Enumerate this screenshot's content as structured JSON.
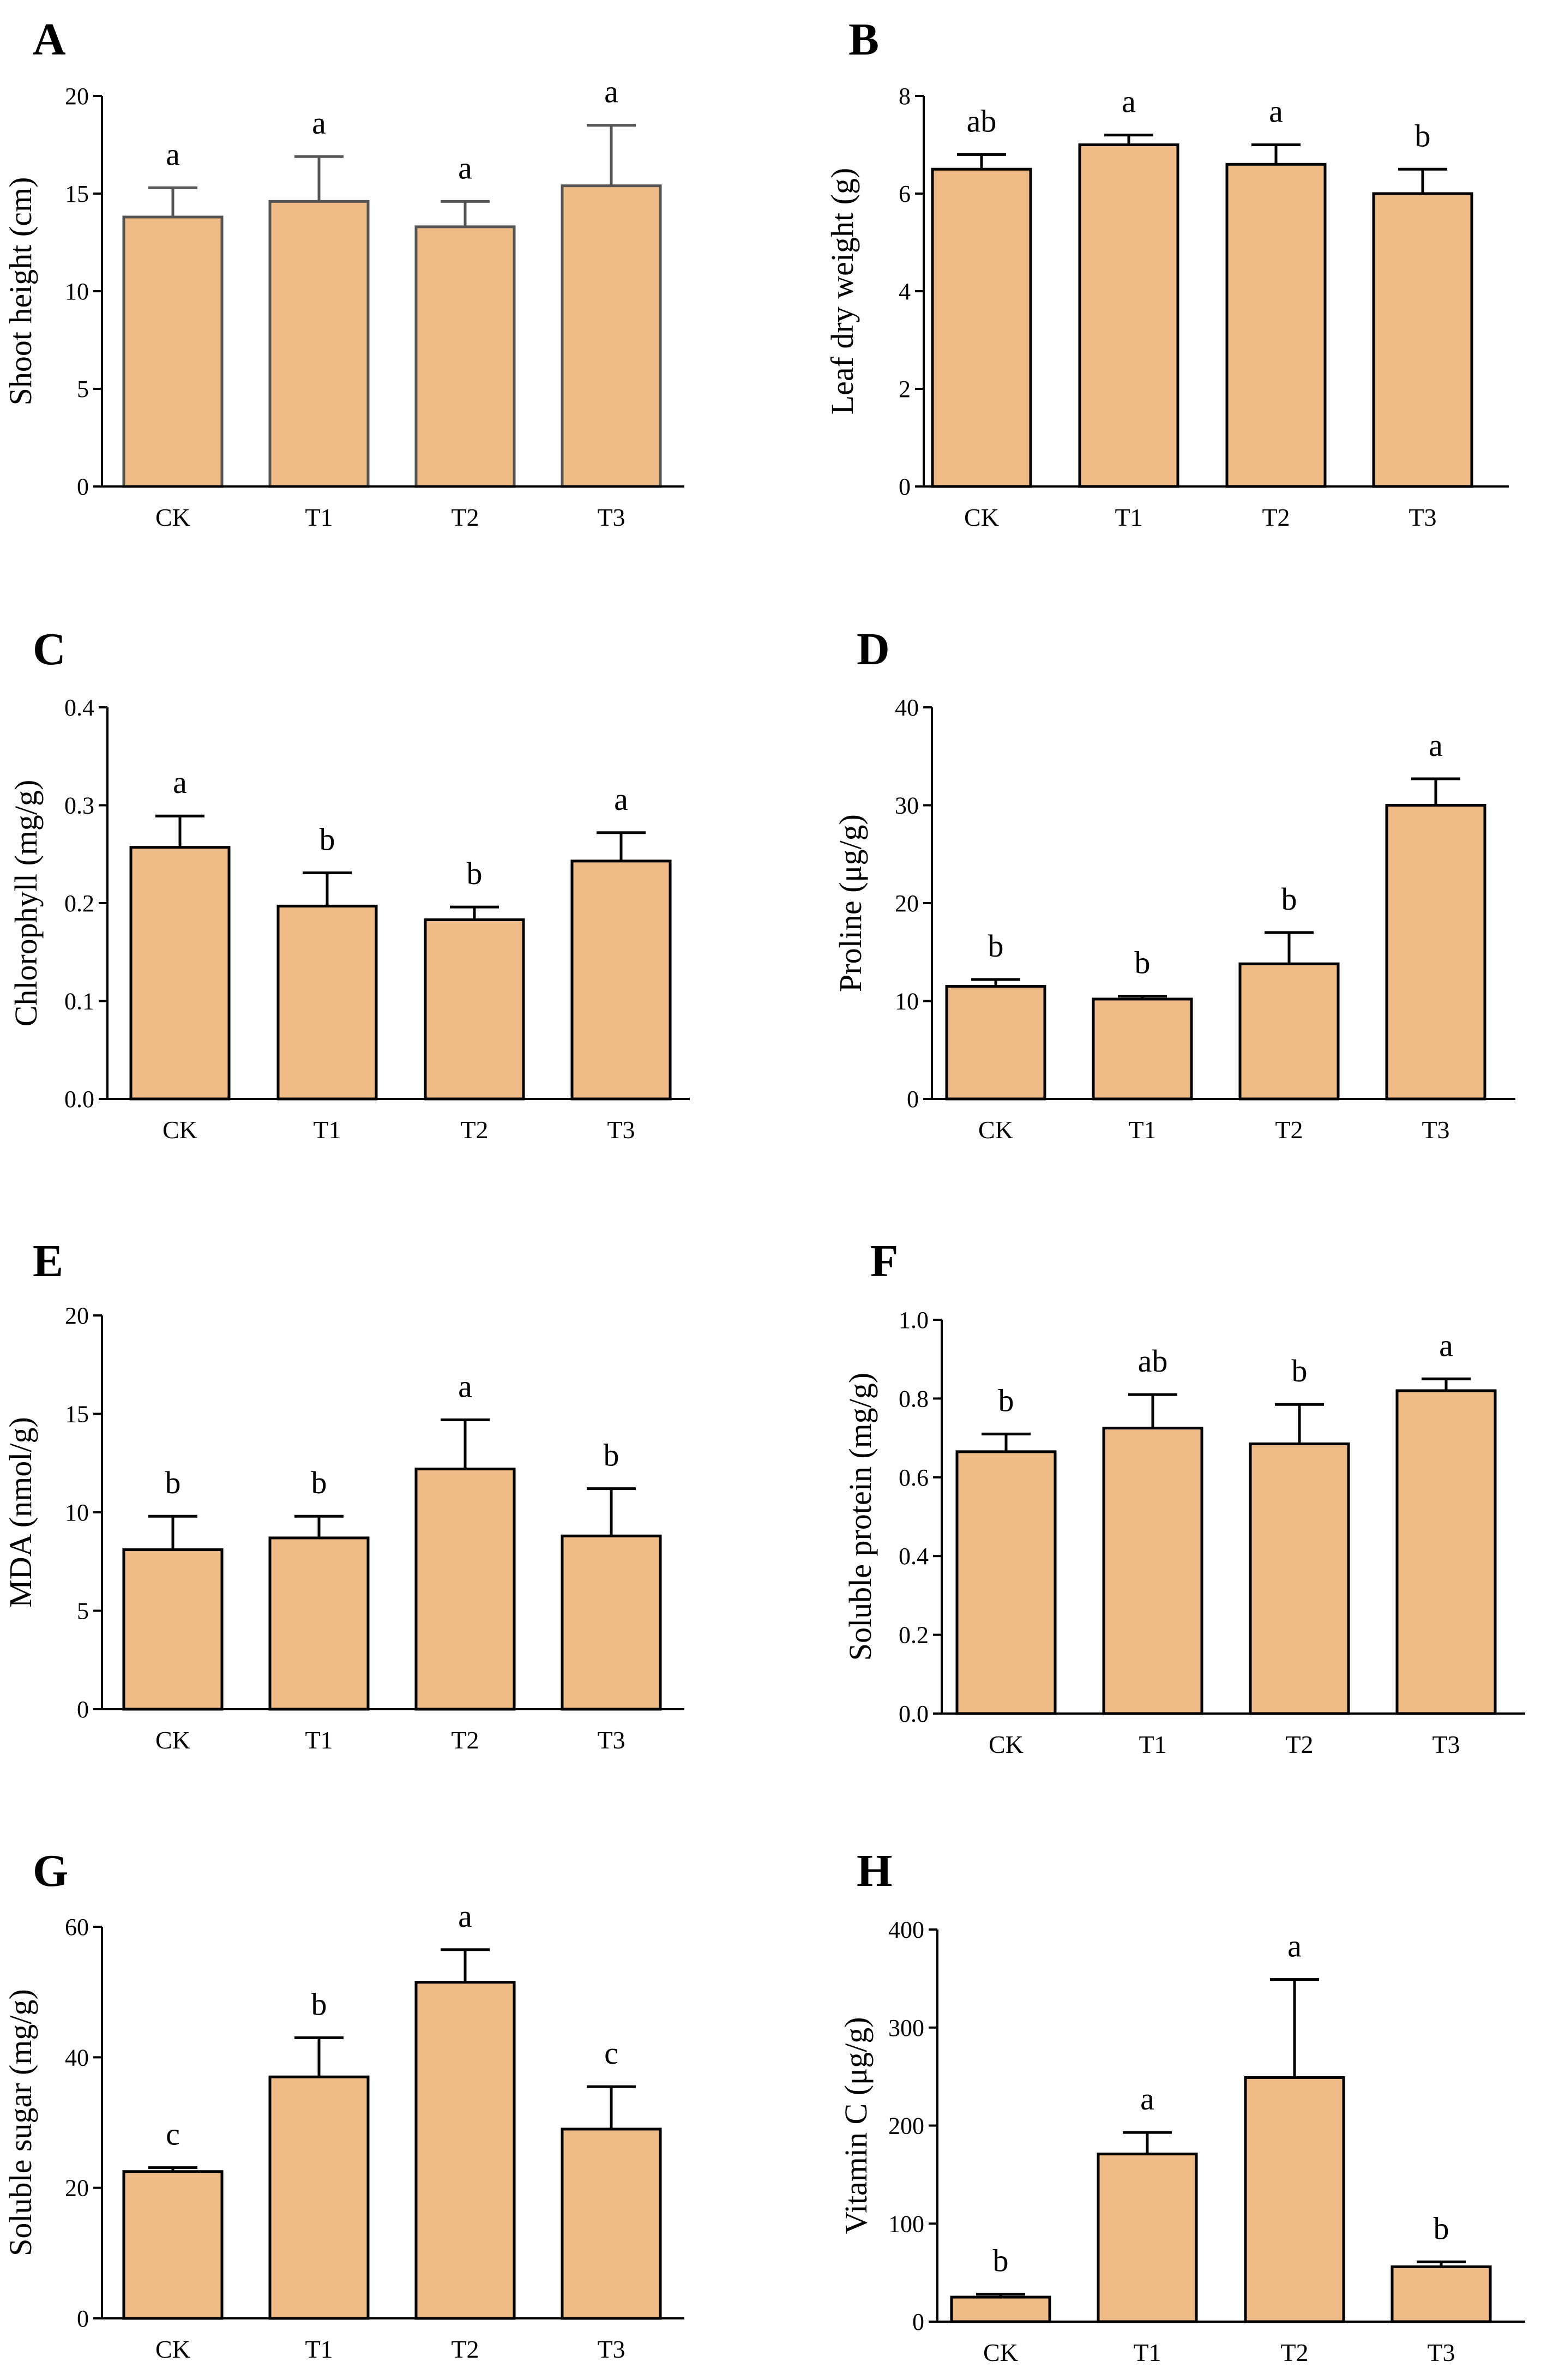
{
  "figure": {
    "bar_color": "#EFBC87",
    "bar_edge_color": "#000000",
    "bar_edge_color_A": "#555555"
  },
  "chart_data": [
    {
      "panel": "A",
      "type": "bar",
      "title": "",
      "xlabel": "",
      "ylabel": "Shoot height (cm)",
      "categories": [
        "CK",
        "T1",
        "T2",
        "T3"
      ],
      "values": [
        13.8,
        14.6,
        13.3,
        15.4
      ],
      "errors": [
        1.5,
        2.3,
        1.3,
        3.1
      ],
      "significance": [
        "a",
        "a",
        "a",
        "a"
      ],
      "ylim": [
        0,
        20
      ],
      "yticks": [
        "0",
        "5",
        "10",
        "15",
        "20"
      ]
    },
    {
      "panel": "B",
      "type": "bar",
      "title": "",
      "xlabel": "",
      "ylabel": "Leaf dry weight (g)",
      "categories": [
        "CK",
        "T1",
        "T2",
        "T3"
      ],
      "values": [
        6.5,
        7.0,
        6.6,
        6.0
      ],
      "errors": [
        0.3,
        0.2,
        0.4,
        0.5
      ],
      "significance": [
        "ab",
        "a",
        "a",
        "b"
      ],
      "ylim": [
        0,
        8
      ],
      "yticks": [
        "0",
        "2",
        "4",
        "6",
        "8"
      ]
    },
    {
      "panel": "C",
      "type": "bar",
      "title": "",
      "xlabel": "",
      "ylabel": "Chlorophyll (mg/g)",
      "categories": [
        "CK",
        "T1",
        "T2",
        "T3"
      ],
      "values": [
        0.257,
        0.197,
        0.183,
        0.243
      ],
      "errors": [
        0.032,
        0.034,
        0.013,
        0.029
      ],
      "significance": [
        "a",
        "b",
        "b",
        "a"
      ],
      "ylim": [
        0,
        0.4
      ],
      "yticks": [
        "0.0",
        "0.1",
        "0.2",
        "0.3",
        "0.4"
      ]
    },
    {
      "panel": "D",
      "type": "bar",
      "title": "",
      "xlabel": "",
      "ylabel": "Proline (μg/g)",
      "categories": [
        "CK",
        "T1",
        "T2",
        "T3"
      ],
      "values": [
        11.5,
        10.2,
        13.8,
        30.0
      ],
      "errors": [
        0.7,
        0.3,
        3.2,
        2.7
      ],
      "significance": [
        "b",
        "b",
        "b",
        "a"
      ],
      "ylim": [
        0,
        40
      ],
      "yticks": [
        "0",
        "10",
        "20",
        "30",
        "40"
      ]
    },
    {
      "panel": "E",
      "type": "bar",
      "title": "",
      "xlabel": "",
      "ylabel": "MDA (nmol/g)",
      "categories": [
        "CK",
        "T1",
        "T2",
        "T3"
      ],
      "values": [
        8.1,
        8.7,
        12.2,
        8.8
      ],
      "errors": [
        1.7,
        1.1,
        2.5,
        2.4
      ],
      "significance": [
        "b",
        "b",
        "a",
        "b"
      ],
      "ylim": [
        0,
        20
      ],
      "yticks": [
        "0",
        "5",
        "10",
        "15",
        "20"
      ]
    },
    {
      "panel": "F",
      "type": "bar",
      "title": "",
      "xlabel": "",
      "ylabel": "Soluble protein (mg/g)",
      "categories": [
        "CK",
        "T1",
        "T2",
        "T3"
      ],
      "values": [
        0.665,
        0.725,
        0.685,
        0.82
      ],
      "errors": [
        0.045,
        0.085,
        0.1,
        0.03
      ],
      "significance": [
        "b",
        "ab",
        "b",
        "a"
      ],
      "ylim": [
        0,
        1.0
      ],
      "yticks": [
        "0.0",
        "0.2",
        "0.4",
        "0.6",
        "0.8",
        "1.0"
      ]
    },
    {
      "panel": "G",
      "type": "bar",
      "title": "",
      "xlabel": "",
      "ylabel": "Soluble sugar (mg/g)",
      "categories": [
        "CK",
        "T1",
        "T2",
        "T3"
      ],
      "values": [
        22.5,
        37.0,
        51.5,
        29.0
      ],
      "errors": [
        0.6,
        6.0,
        5.0,
        6.5
      ],
      "significance": [
        "c",
        "b",
        "a",
        "c"
      ],
      "ylim": [
        0,
        60
      ],
      "yticks": [
        "0",
        "20",
        "40",
        "60"
      ]
    },
    {
      "panel": "H",
      "type": "bar",
      "title": "",
      "xlabel": "",
      "ylabel": "Vitamin C (μg/g)",
      "categories": [
        "CK",
        "T1",
        "T2",
        "T3"
      ],
      "values": [
        25,
        171,
        249,
        56
      ],
      "errors": [
        3,
        22,
        100,
        5
      ],
      "significance": [
        "b",
        "a",
        "a",
        "b"
      ],
      "ylim": [
        0,
        400
      ],
      "yticks": [
        "0",
        "100",
        "200",
        "300",
        "400"
      ]
    }
  ]
}
